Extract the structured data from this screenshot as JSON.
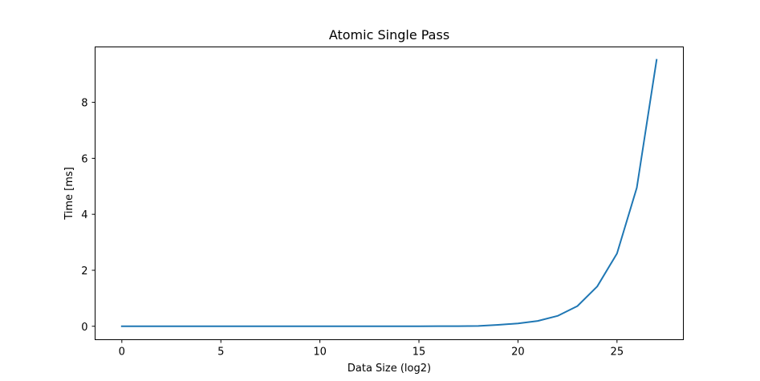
{
  "chart_data": {
    "type": "line",
    "title": "Atomic Single Pass",
    "xlabel": "Data Size (log2)",
    "ylabel": "Time [ms]",
    "xlim": [
      -1.35,
      28.35
    ],
    "ylim": [
      -0.48,
      9.98
    ],
    "xticks": [
      0,
      5,
      10,
      15,
      20,
      25
    ],
    "yticks": [
      0,
      2,
      4,
      6,
      8
    ],
    "grid": false,
    "series": [
      {
        "color": "#1f77b4",
        "x": [
          0,
          1,
          2,
          3,
          4,
          5,
          6,
          7,
          8,
          9,
          10,
          11,
          12,
          13,
          14,
          15,
          16,
          17,
          18,
          19,
          20,
          21,
          22,
          23,
          24,
          25,
          26,
          27
        ],
        "y": [
          0.0,
          0.0,
          0.0,
          0.0,
          0.0,
          0.0,
          0.0,
          0.0,
          0.0,
          0.0,
          0.0,
          0.0,
          0.0,
          0.0,
          0.0,
          0.0,
          0.002,
          0.005,
          0.012,
          0.05,
          0.1,
          0.19,
          0.37,
          0.72,
          1.42,
          2.6,
          4.95,
          9.52
        ]
      }
    ]
  }
}
